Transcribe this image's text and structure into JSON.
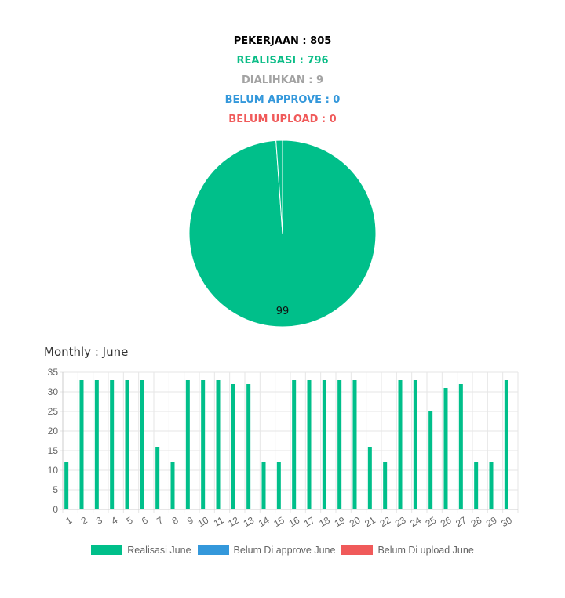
{
  "stats": [
    {
      "text": "PEKERJAAN : 805",
      "color": "#000000"
    },
    {
      "text": "REALISASI : 796",
      "color": "#0bbd87"
    },
    {
      "text": "DIALIHKAN : 9",
      "color": "#a3a3a3"
    },
    {
      "text": "BELUM APPROVE : 0",
      "color": "#3498db"
    },
    {
      "text": "BELUM UPLOAD : 0",
      "color": "#f05a5a"
    }
  ],
  "pie_chart": {
    "type": "pie",
    "slices": [
      {
        "value": 796,
        "color": "#00bf8a"
      },
      {
        "value": 9,
        "color": "#00bf8a"
      },
      {
        "value": 0,
        "color": "#3498db"
      },
      {
        "value": 0,
        "color": "#f05a5a"
      }
    ],
    "data_label": "99"
  },
  "monthly_title": "Monthly : June",
  "chart_data": {
    "type": "bar",
    "categories": [
      "1",
      "2",
      "3",
      "4",
      "5",
      "6",
      "7",
      "8",
      "9",
      "10",
      "11",
      "12",
      "13",
      "14",
      "15",
      "16",
      "17",
      "18",
      "19",
      "20",
      "21",
      "22",
      "23",
      "24",
      "25",
      "26",
      "27",
      "28",
      "29",
      "30"
    ],
    "series": [
      {
        "name": "Realisasi June",
        "color": "#00bf8a",
        "values": [
          12,
          33,
          33,
          33,
          33,
          33,
          16,
          12,
          33,
          33,
          33,
          32,
          32,
          12,
          12,
          33,
          33,
          33,
          33,
          33,
          16,
          12,
          33,
          33,
          25,
          31,
          32,
          12,
          12,
          33
        ]
      },
      {
        "name": "Belum Di approve June",
        "color": "#3498db",
        "values": [
          0,
          0,
          0,
          0,
          0,
          0,
          0,
          0,
          0,
          0,
          0,
          0,
          0,
          0,
          0,
          0,
          0,
          0,
          0,
          0,
          0,
          0,
          0,
          0,
          0,
          0,
          0,
          0,
          0,
          0
        ]
      },
      {
        "name": "Belum Di upload June",
        "color": "#f05a5a",
        "values": [
          0,
          0,
          0,
          0,
          0,
          0,
          0,
          0,
          0,
          0,
          0,
          0,
          0,
          0,
          0,
          0,
          0,
          0,
          0,
          0,
          0,
          0,
          0,
          0,
          0,
          0,
          0,
          0,
          0,
          0
        ]
      }
    ],
    "ylim": [
      0,
      35
    ],
    "yticks": [
      0,
      5,
      10,
      15,
      20,
      25,
      30,
      35
    ],
    "grid": true,
    "legend": "bottom"
  }
}
